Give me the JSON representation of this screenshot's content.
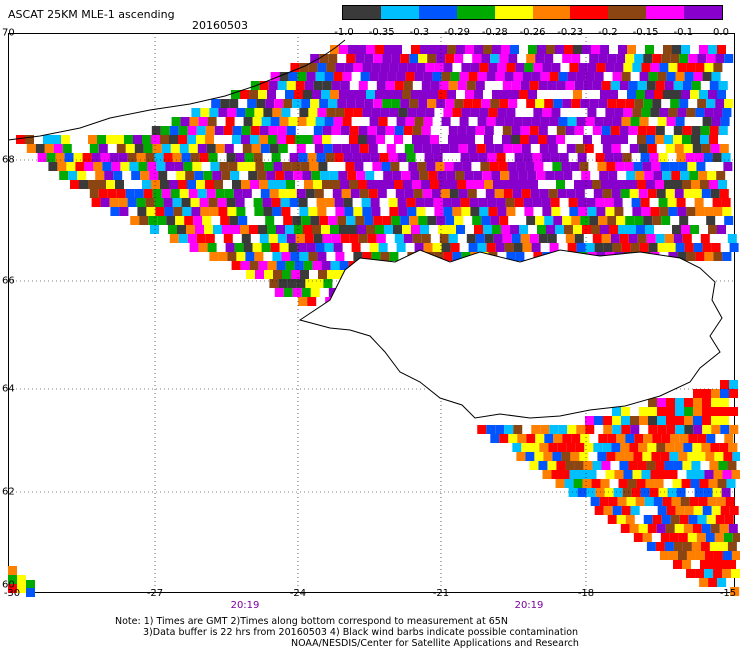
{
  "header": {
    "title": "ASCAT 25KM MLE-1 ascending",
    "date": "20160503"
  },
  "legend": {
    "colors": [
      "#3a3a3a",
      "#00bfff",
      "#0055ff",
      "#00aa00",
      "#ffff00",
      "#ff7f00",
      "#ff0000",
      "#8b4513",
      "#ff00ff",
      "#8800cc"
    ],
    "labels": [
      "-1.0",
      "-0.35",
      "-0.3",
      "-0.29",
      "-0.28",
      "-0.26",
      "-0.23",
      "-0.2",
      "-0.15",
      "-0.1",
      "0.0"
    ]
  },
  "axes": {
    "lat_labels": [
      "70",
      "68",
      "66",
      "64",
      "62",
      "60"
    ],
    "lon_labels": [
      "-30",
      "-27",
      "-24",
      "-21",
      "-18",
      "-15"
    ],
    "time_labels": [
      "20:19",
      "20:19"
    ]
  },
  "notes": [
    "Note: 1) Times are GMT 2)Times along bottom correspond to measurement at 65N",
    "3)Data buffer is 22 hrs from 20160503 4) Black wind barbs indicate possible contamination",
    "NOAA/NESDIS/Center for Satellite Applications and Research"
  ]
}
